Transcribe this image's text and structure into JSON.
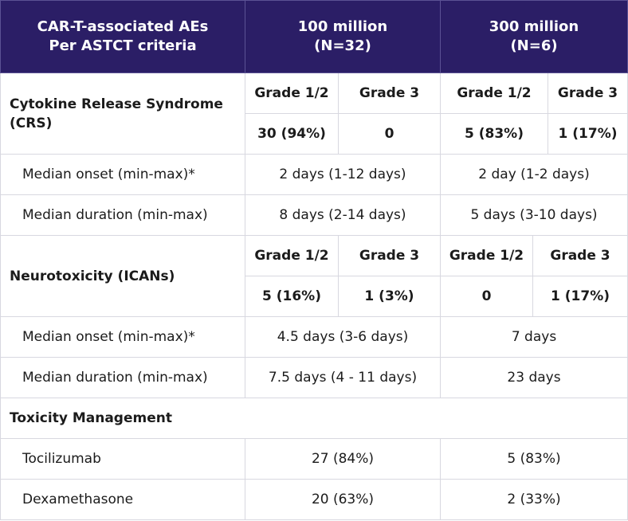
{
  "header": {
    "col1": [
      "CAR-T-associated AEs",
      "Per ASTCT criteria"
    ],
    "col2": [
      "100 million",
      "(N=32)"
    ],
    "col3": [
      "300 million",
      "(N=6)"
    ]
  },
  "crs": {
    "label": "Cytokine Release Syndrome (CRS)",
    "grades": [
      "Grade 1/2",
      "Grade 3",
      "Grade  1/2",
      "Grade 3"
    ],
    "values": [
      "30 (94%)",
      "0",
      "5  (83%)",
      "1 (17%)"
    ],
    "rows": [
      {
        "label": "Median onset (min-max)*",
        "v100": "2 days (1-12 days)",
        "v300": "2 day (1-2 days)"
      },
      {
        "label": "Median duration (min-max)",
        "v100": "8 days (2-14 days)",
        "v300": "5 days (3-10 days)"
      }
    ]
  },
  "icans": {
    "label": "Neurotoxicity (ICANs)",
    "grades": [
      "Grade 1/2",
      "Grade 3",
      "Grade 1/2",
      "Grade 3"
    ],
    "values": [
      "5 (16%)",
      "1 (3%)",
      "0",
      "1 (17%)"
    ],
    "rows": [
      {
        "label": "Median onset (min-max)*",
        "v100": "4.5 days (3-6 days)",
        "v300": "7 days"
      },
      {
        "label": "Median duration (min-max)",
        "v100": "7.5 days (4 - 11 days)",
        "v300": "23 days"
      }
    ]
  },
  "management": {
    "label": "Toxicity Management",
    "rows": [
      {
        "label": "Tocilizumab",
        "v100": "27 (84%)",
        "v300": "5 (83%)"
      },
      {
        "label": "Dexamethasone",
        "v100": "20 (63%)",
        "v300": "2 (33%)"
      }
    ]
  },
  "colors": {
    "header_bg": "#2b1e66",
    "header_text": "#ffffff",
    "border": "#d8d8e0"
  }
}
